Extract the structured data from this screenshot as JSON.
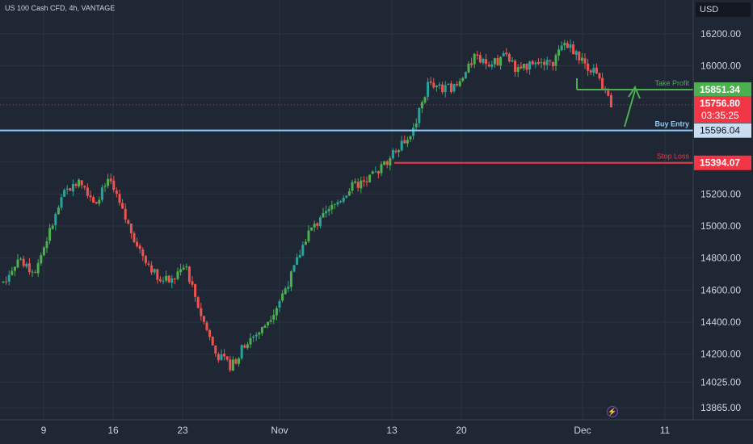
{
  "title": "US 100 Cash CFD, 4h, VANTAGE",
  "currency": "USD",
  "icons": {
    "replay": "lightning-icon"
  },
  "colors": {
    "background": "#1e2733",
    "grid": "#2a3340",
    "up": "#26a69a",
    "up_bright": "#4caf50",
    "down": "#ef5350",
    "take_profit": "#4caf50",
    "stop_loss": "#f23645",
    "buy_entry": "#90caf9",
    "text": "#d1d4dc"
  },
  "chart_data": {
    "type": "candlestick",
    "y_axis": {
      "range": [
        13865,
        16200
      ],
      "ticks": [
        "16200.00",
        "16000.00",
        "15800.00",
        "15600.00",
        "15400.00",
        "15200.00",
        "15000.00",
        "14800.00",
        "14600.00",
        "14400.00",
        "14200.00",
        "14025.00",
        "13865.00"
      ]
    },
    "x_axis": {
      "ticks": [
        "9",
        "16",
        "23",
        "Nov",
        "13",
        "20",
        "Dec",
        "11"
      ]
    },
    "levels": [
      {
        "name": "Take Profit",
        "value": 15851.34,
        "label": "15851.34"
      },
      {
        "name": "Buy Entry",
        "value": 15596.04,
        "label": "15596.04"
      },
      {
        "name": "Stop Loss",
        "value": 15394.07,
        "label": "15394.07"
      }
    ],
    "last_price": {
      "label": "15756.80",
      "countdown": "03:35:25"
    },
    "series_anchors": [
      {
        "x": "Oct 4",
        "y": 14650
      },
      {
        "x": "Oct 6",
        "y": 14800
      },
      {
        "x": "Oct 9",
        "y": 14700
      },
      {
        "x": "Oct 10",
        "y": 14950
      },
      {
        "x": "Oct 12",
        "y": 15200
      },
      {
        "x": "Oct 13",
        "y": 15300
      },
      {
        "x": "Oct 16",
        "y": 15150
      },
      {
        "x": "Oct 17",
        "y": 15280
      },
      {
        "x": "Oct 18",
        "y": 15050
      },
      {
        "x": "Oct 19",
        "y": 14850
      },
      {
        "x": "Oct 20",
        "y": 14700
      },
      {
        "x": "Oct 23",
        "y": 14650
      },
      {
        "x": "Oct 24",
        "y": 14750
      },
      {
        "x": "Oct 25",
        "y": 14450
      },
      {
        "x": "Oct 26",
        "y": 14200
      },
      {
        "x": "Oct 27",
        "y": 14120
      },
      {
        "x": "Oct 30",
        "y": 14280
      },
      {
        "x": "Oct 31",
        "y": 14350
      },
      {
        "x": "Nov 1",
        "y": 14500
      },
      {
        "x": "Nov 2",
        "y": 14700
      },
      {
        "x": "Nov 3",
        "y": 14950
      },
      {
        "x": "Nov 6",
        "y": 15050
      },
      {
        "x": "Nov 7",
        "y": 15150
      },
      {
        "x": "Nov 8",
        "y": 15250
      },
      {
        "x": "Nov 9",
        "y": 15280
      },
      {
        "x": "Nov 10",
        "y": 15380
      },
      {
        "x": "Nov 13",
        "y": 15500
      },
      {
        "x": "Nov 14",
        "y": 15600
      },
      {
        "x": "Nov 15",
        "y": 15900
      },
      {
        "x": "Nov 16",
        "y": 15850
      },
      {
        "x": "Nov 17",
        "y": 15880
      },
      {
        "x": "Nov 20",
        "y": 16050
      },
      {
        "x": "Nov 21",
        "y": 16000
      },
      {
        "x": "Nov 22",
        "y": 16060
      },
      {
        "x": "Nov 24",
        "y": 15960
      },
      {
        "x": "Nov 27",
        "y": 16050
      },
      {
        "x": "Nov 28",
        "y": 16000
      },
      {
        "x": "Nov 29",
        "y": 16150
      },
      {
        "x": "Nov 30",
        "y": 16040
      },
      {
        "x": "Dec 1",
        "y": 15950
      },
      {
        "x": "Dec 4",
        "y": 15756
      }
    ]
  }
}
